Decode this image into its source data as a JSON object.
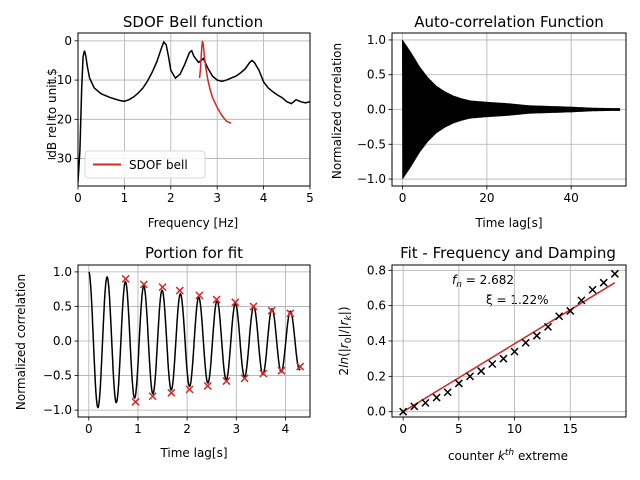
{
  "chart_data": [
    {
      "type": "line",
      "title": "SDOF Bell function",
      "xlabel": "Frequency [Hz]",
      "ylabel": "dB rel to unit.$",
      "xlim": [
        0,
        5
      ],
      "ylim": [
        -37,
        2
      ],
      "xticks": [
        0,
        1,
        2,
        3,
        4,
        5
      ],
      "yticks": [
        -30,
        -20,
        -10,
        0
      ],
      "grid": true,
      "legend": {
        "position": "lower-left",
        "entries": [
          "SDOF bell"
        ]
      },
      "series": [
        {
          "color": "#000000",
          "x": [
            0.0,
            0.04,
            0.08,
            0.11,
            0.14,
            0.17,
            0.2,
            0.25,
            0.35,
            0.5,
            0.7,
            0.9,
            1.0,
            1.1,
            1.2,
            1.3,
            1.4,
            1.5,
            1.6,
            1.7,
            1.8,
            1.85,
            1.9,
            1.95,
            2.0,
            2.1,
            2.2,
            2.3,
            2.4,
            2.45,
            2.5,
            2.6,
            2.7,
            2.8,
            2.9,
            3.0,
            3.1,
            3.2,
            3.3,
            3.4,
            3.5,
            3.6,
            3.7,
            3.75,
            3.8,
            3.9,
            4.0,
            4.1,
            4.2,
            4.3,
            4.4,
            4.5,
            4.6,
            4.7,
            4.8,
            4.9,
            5.0
          ],
          "y": [
            -36,
            -28,
            -12,
            -4,
            -2.5,
            -4,
            -6.5,
            -9.5,
            -12,
            -13.5,
            -14.5,
            -15.2,
            -15.4,
            -15,
            -14.3,
            -13.3,
            -12,
            -10.2,
            -8,
            -5.3,
            -1.8,
            -0.3,
            -1,
            -4,
            -7.5,
            -9.5,
            -8.5,
            -6,
            -3,
            -2.5,
            -4,
            -5.5,
            -4.5,
            -7,
            -9,
            -10,
            -10.3,
            -10,
            -9.5,
            -9,
            -8.2,
            -7.2,
            -5.5,
            -5,
            -5.5,
            -7.5,
            -10.5,
            -12,
            -13,
            -13.8,
            -14.5,
            -15.5,
            -16,
            -15,
            -15.5,
            -15.8,
            -15.5
          ]
        },
        {
          "name": "SDOF bell",
          "color": "#d62728",
          "x": [
            2.62,
            2.64,
            2.66,
            2.68,
            2.7,
            2.72,
            2.75,
            2.8,
            2.85,
            2.9,
            3.0,
            3.1,
            3.2,
            3.3
          ],
          "y": [
            -9.5,
            -7,
            -3,
            0,
            -1,
            -3.5,
            -6.5,
            -10,
            -12.5,
            -14.5,
            -17,
            -19,
            -20.5,
            -21
          ]
        }
      ]
    },
    {
      "type": "line",
      "title": "Auto-correlation Function",
      "xlabel": "Time lag[s]",
      "ylabel": "Normalized correlation",
      "xlim": [
        -2.5,
        53
      ],
      "ylim": [
        -1.1,
        1.1
      ],
      "xticks": [
        0,
        20,
        40
      ],
      "yticks": [
        -1.0,
        -0.5,
        0.0,
        0.5,
        1.0
      ],
      "grid": true,
      "series": [
        {
          "color": "#000000",
          "x": [
            0,
            2,
            4,
            6,
            8,
            10,
            12,
            14,
            16,
            18,
            20,
            25,
            30,
            35,
            40,
            45,
            50,
            51.5
          ],
          "amplitude": [
            1.0,
            0.82,
            0.62,
            0.46,
            0.34,
            0.26,
            0.2,
            0.16,
            0.13,
            0.12,
            0.11,
            0.09,
            0.06,
            0.05,
            0.04,
            0.025,
            0.02,
            0.02
          ]
        }
      ]
    },
    {
      "type": "line",
      "title": "Portion for fit",
      "xlabel": "Time lag[s]",
      "ylabel": "Normalized correlation",
      "xlim": [
        -0.22,
        4.5
      ],
      "ylim": [
        -1.1,
        1.1
      ],
      "xticks": [
        0,
        1,
        2,
        3,
        4
      ],
      "yticks": [
        -1.0,
        -0.5,
        0.0,
        0.5,
        1.0
      ],
      "grid": true,
      "series": [
        {
          "color": "#000000",
          "freq_hz": 2.682,
          "damping": 0.0122,
          "t_max": 4.3
        },
        {
          "type": "scatter",
          "marker": "x",
          "color": "#d62728",
          "x": [
            0.75,
            0.95,
            1.12,
            1.3,
            1.5,
            1.68,
            1.85,
            2.05,
            2.25,
            2.42,
            2.6,
            2.8,
            2.98,
            3.17,
            3.35,
            3.55,
            3.72,
            3.92,
            4.1,
            4.3
          ],
          "y": [
            0.9,
            -0.88,
            0.82,
            -0.8,
            0.78,
            -0.75,
            0.73,
            -0.7,
            0.66,
            -0.65,
            0.6,
            -0.58,
            0.56,
            -0.54,
            0.5,
            -0.47,
            0.44,
            -0.43,
            0.4,
            -0.37
          ]
        }
      ]
    },
    {
      "type": "scatter",
      "title": "Fit - Frequency and Damping",
      "xlabel": "counter $k^{th}$ extreme",
      "ylabel": "$2ln(|r_0|/|r_k|)$",
      "xlim": [
        -1,
        20
      ],
      "ylim": [
        -0.03,
        0.83
      ],
      "xticks": [
        0,
        5,
        10,
        15
      ],
      "yticks": [
        0.0,
        0.2,
        0.4,
        0.6,
        0.8
      ],
      "grid": true,
      "annotations": [
        "f_n = 2.682",
        "ξ = 1.22%"
      ],
      "series": [
        {
          "marker": "x",
          "color": "#000000",
          "x": [
            0,
            1,
            2,
            3,
            4,
            5,
            6,
            7,
            8,
            9,
            10,
            11,
            12,
            13,
            14,
            15,
            16,
            17,
            18,
            19
          ],
          "y": [
            0.0,
            0.03,
            0.05,
            0.08,
            0.11,
            0.16,
            0.2,
            0.23,
            0.27,
            0.3,
            0.34,
            0.39,
            0.43,
            0.48,
            0.54,
            0.57,
            0.63,
            0.69,
            0.73,
            0.78
          ]
        },
        {
          "type": "line",
          "color": "#d62728",
          "x": [
            0,
            19
          ],
          "y": [
            0.0,
            0.73
          ]
        }
      ]
    }
  ]
}
